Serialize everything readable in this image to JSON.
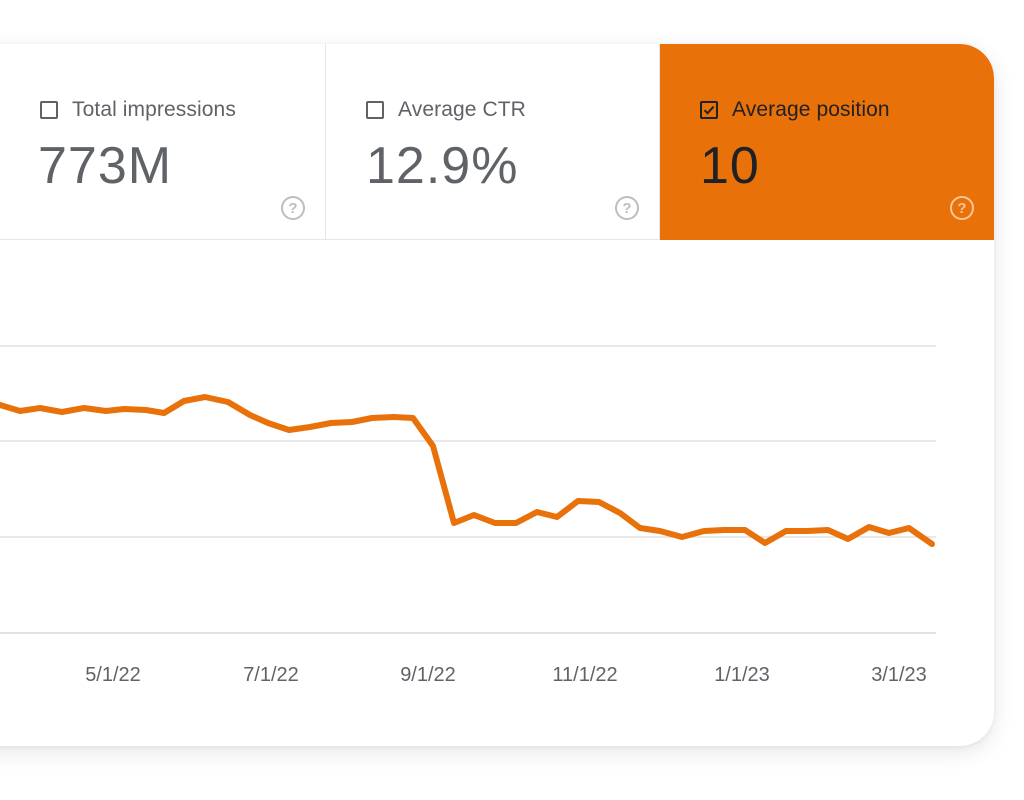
{
  "tiles": [
    {
      "label": "Total impressions",
      "value": "773M",
      "checked": false,
      "help_icon": "help-circle-icon"
    },
    {
      "label": "Average CTR",
      "value": "12.9%",
      "checked": false,
      "help_icon": "help-circle-icon"
    },
    {
      "label": "Average position",
      "value": "10",
      "checked": true,
      "help_icon": "help-circle-icon"
    }
  ],
  "help_glyph": "?",
  "colors": {
    "accent": "#e8710a",
    "grid": "#e0e0e0",
    "axis_text": "#5f6368"
  },
  "chart_data": {
    "type": "line",
    "xlabel": "",
    "ylabel": "",
    "grid": true,
    "x_ticks": [
      "5/1/22",
      "7/1/22",
      "9/1/22",
      "11/1/22",
      "1/1/23",
      "3/1/23"
    ],
    "series": [
      {
        "color": "#e8710a",
        "x": [
          "2022-03-01",
          "2022-03-16",
          "2022-03-31",
          "2022-04-15",
          "2022-04-30",
          "2022-05-15",
          "2022-05-30",
          "2022-06-14",
          "2022-06-29",
          "2022-07-14",
          "2022-07-29",
          "2022-08-13",
          "2022-08-28",
          "2022-09-12",
          "2022-09-27",
          "2022-10-12",
          "2022-10-27",
          "2022-11-11",
          "2022-11-26",
          "2022-12-11",
          "2022-12-26",
          "2023-01-10",
          "2023-01-25",
          "2023-02-09",
          "2023-02-24",
          "2023-03-11"
        ],
        "values": [
          8.9,
          8.95,
          8.9,
          8.92,
          8.95,
          8.85,
          8.95,
          9.1,
          9.3,
          9.5,
          9.5,
          9.5,
          9.5,
          11.2,
          11.3,
          11.3,
          11.25,
          11.2,
          11.35,
          11.45,
          11.45,
          11.5,
          11.45,
          11.45,
          11.45,
          11.5
        ]
      }
    ]
  }
}
